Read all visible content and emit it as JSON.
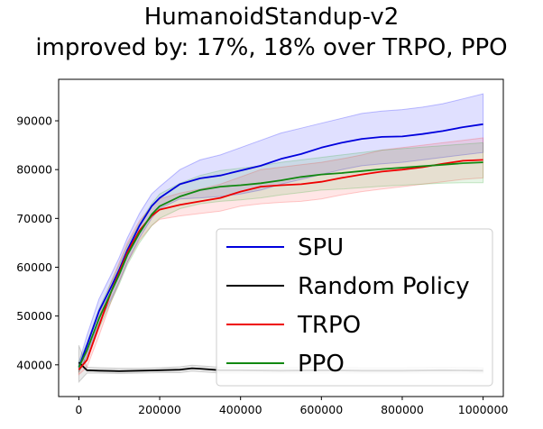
{
  "chart_data": {
    "type": "line",
    "title": "HumanoidStandup-v2",
    "subtitle": "improved by: 17%, 18% over TRPO, PPO",
    "xlabel": "",
    "ylabel": "",
    "xlim": [
      -50000,
      1050000
    ],
    "ylim": [
      33500,
      98500
    ],
    "x_ticks": [
      0,
      200000,
      400000,
      600000,
      800000,
      1000000
    ],
    "y_ticks": [
      40000,
      50000,
      60000,
      70000,
      80000,
      90000
    ],
    "grid": false,
    "legend_position": "lower-right",
    "series": [
      {
        "name": "SPU",
        "color": "#0000dd",
        "band_color": "#0000ff",
        "x": [
          0,
          20000,
          50000,
          80000,
          100000,
          120000,
          150000,
          180000,
          200000,
          250000,
          300000,
          350000,
          400000,
          450000,
          500000,
          550000,
          600000,
          650000,
          700000,
          750000,
          800000,
          850000,
          900000,
          950000,
          1000000
        ],
        "y": [
          39500,
          44000,
          51000,
          56000,
          59500,
          63500,
          68500,
          72500,
          74200,
          77000,
          78200,
          78800,
          79800,
          80800,
          82200,
          83200,
          84500,
          85500,
          86300,
          86700,
          86800,
          87300,
          87900,
          88700,
          89300
        ],
        "lower": [
          38500,
          42000,
          48500,
          53500,
          57000,
          61000,
          66000,
          70000,
          72000,
          74000,
          74200,
          74500,
          75000,
          75800,
          77000,
          78000,
          79000,
          80000,
          80800,
          81200,
          81500,
          82000,
          82500,
          83000,
          83500
        ],
        "upper": [
          40500,
          46000,
          53500,
          58500,
          62000,
          66000,
          71000,
          75000,
          76500,
          80000,
          82000,
          83000,
          84500,
          86000,
          87500,
          88500,
          89500,
          90500,
          91500,
          92000,
          92300,
          92800,
          93500,
          94500,
          95500
        ]
      },
      {
        "name": "Random Policy",
        "color": "#000000",
        "band_color": "#555555",
        "x": [
          0,
          20000,
          50000,
          100000,
          150000,
          200000,
          250000,
          280000,
          300000,
          350000,
          400000,
          500000,
          600000,
          700000,
          800000,
          900000,
          1000000
        ],
        "y": [
          40500,
          38900,
          38800,
          38700,
          38800,
          38900,
          39000,
          39300,
          39200,
          38900,
          38900,
          38800,
          38900,
          38800,
          38800,
          38900,
          38800
        ],
        "lower": [
          36500,
          38300,
          38300,
          38200,
          38300,
          38400,
          38400,
          38700,
          38600,
          38300,
          38300,
          38300,
          38300,
          38300,
          38300,
          38300,
          38300
        ],
        "upper": [
          44000,
          39500,
          39400,
          39300,
          39300,
          39400,
          39600,
          39900,
          39800,
          39500,
          39500,
          39400,
          39500,
          39400,
          39400,
          39500,
          39400
        ]
      },
      {
        "name": "TRPO",
        "color": "#ee0000",
        "band_color": "#ff3333",
        "x": [
          0,
          20000,
          50000,
          80000,
          100000,
          120000,
          150000,
          180000,
          200000,
          250000,
          300000,
          350000,
          400000,
          450000,
          500000,
          550000,
          600000,
          650000,
          700000,
          750000,
          800000,
          850000,
          900000,
          950000,
          1000000
        ],
        "y": [
          39000,
          41000,
          48000,
          55000,
          59000,
          63000,
          67500,
          70500,
          71800,
          72800,
          73500,
          74200,
          75500,
          76500,
          76800,
          77000,
          77500,
          78300,
          79000,
          79600,
          80000,
          80500,
          81200,
          81800,
          82000
        ],
        "lower": [
          38000,
          39500,
          46000,
          53000,
          57000,
          61000,
          65500,
          68500,
          69800,
          70500,
          71000,
          71500,
          72500,
          73000,
          73300,
          73500,
          74000,
          74800,
          75500,
          76000,
          76500,
          77000,
          77500,
          78000,
          78300
        ],
        "upper": [
          40000,
          42500,
          50000,
          57000,
          61000,
          65000,
          69500,
          72500,
          74000,
          75200,
          76000,
          77000,
          78500,
          80000,
          80500,
          81000,
          81500,
          82200,
          83000,
          84000,
          84500,
          85000,
          85500,
          86000,
          86500
        ]
      },
      {
        "name": "PPO",
        "color": "#118811",
        "band_color": "#33aa33",
        "x": [
          0,
          20000,
          50000,
          80000,
          100000,
          120000,
          150000,
          180000,
          200000,
          250000,
          300000,
          350000,
          400000,
          450000,
          500000,
          550000,
          600000,
          650000,
          700000,
          750000,
          800000,
          850000,
          900000,
          950000,
          1000000
        ],
        "y": [
          39500,
          43000,
          49500,
          55000,
          58500,
          62500,
          67000,
          70800,
          72500,
          74500,
          75800,
          76500,
          76800,
          77200,
          77800,
          78500,
          79000,
          79300,
          79700,
          80100,
          80400,
          80700,
          81000,
          81300,
          81500
        ],
        "lower": [
          38500,
          41500,
          47500,
          53000,
          56500,
          60500,
          65000,
          68500,
          70000,
          72000,
          73000,
          73500,
          73800,
          74200,
          74800,
          75300,
          75800,
          76000,
          76300,
          76600,
          76800,
          77000,
          77200,
          77300,
          77300
        ],
        "upper": [
          40500,
          44500,
          51500,
          57000,
          60500,
          64500,
          69000,
          73000,
          75000,
          77200,
          78800,
          79800,
          80300,
          80800,
          81500,
          82000,
          82500,
          83000,
          83500,
          84000,
          84300,
          84600,
          84900,
          85200,
          85500
        ]
      }
    ]
  }
}
